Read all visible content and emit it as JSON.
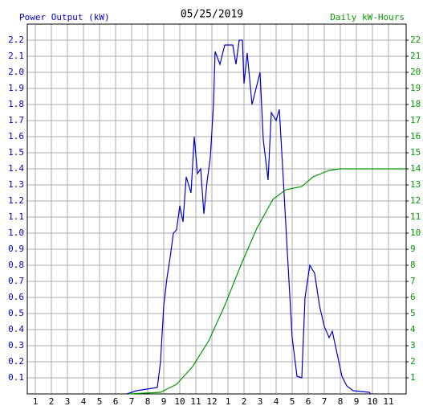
{
  "chart_data": {
    "type": "line",
    "title": "05/25/2019",
    "xlim": [
      0.5,
      24.1
    ],
    "xticks": [
      1,
      2,
      3,
      4,
      5,
      6,
      7,
      8,
      9,
      10,
      11,
      12,
      {
        "value": 13,
        "label": "1"
      },
      {
        "value": 14,
        "label": "2"
      },
      {
        "value": 15,
        "label": "3"
      },
      {
        "value": 16,
        "label": "4"
      },
      {
        "value": 17,
        "label": "5"
      },
      {
        "value": 18,
        "label": "6"
      },
      {
        "value": 19,
        "label": "7"
      },
      {
        "value": 20,
        "label": "8"
      },
      {
        "value": 21,
        "label": "9"
      },
      {
        "value": 22,
        "label": "10"
      },
      {
        "value": 23,
        "label": "11"
      }
    ],
    "ylim": [
      0,
      2.3
    ],
    "yticks": [
      0.1,
      0.2,
      0.3,
      0.4,
      0.5,
      0.6,
      0.7,
      0.8,
      0.9,
      {
        "value": 1,
        "label": "1.0"
      },
      1.1,
      1.2,
      1.3,
      1.4,
      1.5,
      1.6,
      1.7,
      1.8,
      1.9,
      {
        "value": 2,
        "label": "2.0"
      },
      2.1,
      2.2
    ],
    "y2lim": [
      0,
      23
    ],
    "y2ticks": [
      1,
      2,
      3,
      4,
      5,
      6,
      7,
      8,
      9,
      10,
      11,
      12,
      13,
      14,
      15,
      16,
      17,
      18,
      19,
      20,
      21,
      22
    ],
    "grid": true,
    "series": [
      {
        "name": "Power Output (kW)",
        "color": "#0000cc",
        "axis": "y",
        "x": [
          6.7,
          7.3,
          8.6,
          8.8,
          9.0,
          9.2,
          9.4,
          9.6,
          9.8,
          10.0,
          10.2,
          10.4,
          10.7,
          10.9,
          11.1,
          11.3,
          11.5,
          11.7,
          11.9,
          12.1,
          12.2,
          12.5,
          12.8,
          13.3,
          13.5,
          13.7,
          13.9,
          14.0,
          14.2,
          14.5,
          14.8,
          15.0,
          15.2,
          15.5,
          15.7,
          16.0,
          16.2,
          16.4,
          16.7,
          17.0,
          17.3,
          17.6,
          17.8,
          18.1,
          18.4,
          18.7,
          19.0,
          19.3,
          19.5,
          19.8,
          20.1,
          20.4,
          20.8,
          21.8,
          21.9
        ],
        "values": [
          0,
          0.02,
          0.04,
          0.2,
          0.55,
          0.72,
          0.85,
          1.0,
          1.02,
          1.17,
          1.07,
          1.35,
          1.25,
          1.6,
          1.37,
          1.4,
          1.12,
          1.32,
          1.47,
          1.8,
          2.13,
          2.05,
          2.17,
          2.17,
          2.05,
          2.2,
          2.2,
          1.93,
          2.12,
          1.8,
          1.92,
          2.0,
          1.58,
          1.33,
          1.75,
          1.7,
          1.77,
          1.42,
          0.88,
          0.35,
          0.11,
          0.1,
          0.6,
          0.8,
          0.75,
          0.55,
          0.42,
          0.35,
          0.39,
          0.25,
          0.11,
          0.05,
          0.02,
          0.01,
          0
        ]
      },
      {
        "name": "Daily kW-Hours",
        "color": "#009900",
        "axis": "y2",
        "x": [
          6.8,
          8.8,
          9.8,
          10.8,
          11.8,
          12.8,
          13.8,
          14.8,
          15.8,
          16.6,
          17.6,
          18.3,
          19.3,
          20.0,
          24.1
        ],
        "values": [
          0,
          0.1,
          0.6,
          1.7,
          3.3,
          5.5,
          8.0,
          10.3,
          12.1,
          12.7,
          12.9,
          13.5,
          13.9,
          14.0,
          14.0
        ]
      }
    ]
  }
}
